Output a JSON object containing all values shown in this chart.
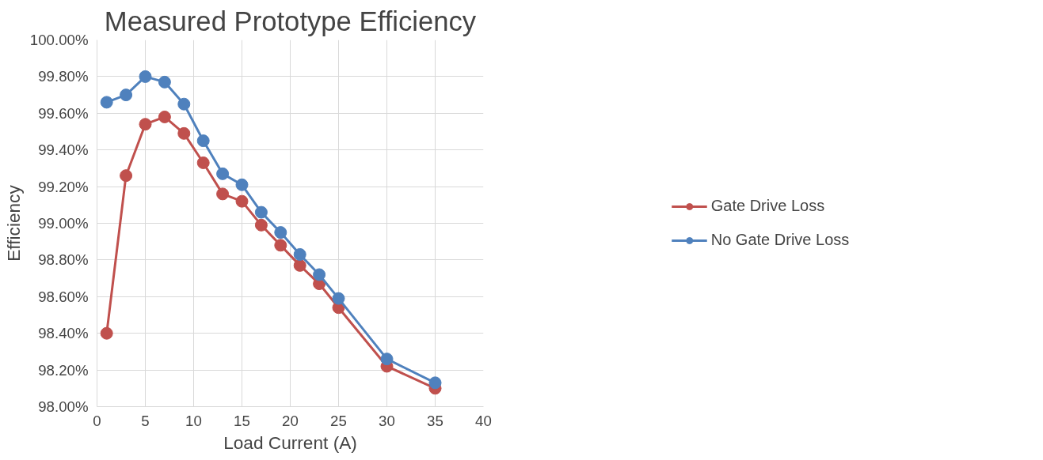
{
  "chart_data": {
    "type": "line",
    "title": "Measured Prototype Efficiency",
    "xlabel": "Load Current (A)",
    "ylabel": "Efficiency",
    "x": [
      1,
      3,
      5,
      7,
      9,
      11,
      13,
      15,
      17,
      19,
      21,
      23,
      25,
      30,
      35
    ],
    "series": [
      {
        "name": "Gate Drive Loss",
        "color": "#c0504d",
        "values": [
          98.4,
          99.26,
          99.54,
          99.58,
          99.49,
          99.33,
          99.16,
          99.12,
          98.99,
          98.88,
          98.77,
          98.67,
          98.54,
          98.22,
          98.1
        ]
      },
      {
        "name": "No Gate Drive Loss",
        "color": "#4f81bd",
        "values": [
          99.66,
          99.7,
          99.8,
          99.77,
          99.65,
          99.45,
          99.27,
          99.21,
          99.06,
          98.95,
          98.83,
          98.72,
          98.59,
          98.26,
          98.13
        ]
      }
    ],
    "xlim": [
      0,
      40
    ],
    "xticks": [
      0,
      5,
      10,
      15,
      20,
      25,
      30,
      35,
      40
    ],
    "ylim": [
      98,
      100
    ],
    "yticks": [
      {
        "value": 98,
        "label": "98.00%"
      },
      {
        "value": 98.2,
        "label": "98.20%"
      },
      {
        "value": 98.4,
        "label": "98.40%"
      },
      {
        "value": 98.6,
        "label": "98.60%"
      },
      {
        "value": 98.8,
        "label": "98.80%"
      },
      {
        "value": 99,
        "label": "99.00%"
      },
      {
        "value": 99.2,
        "label": "99.20%"
      },
      {
        "value": 99.4,
        "label": "99.40%"
      },
      {
        "value": 99.6,
        "label": "99.60%"
      },
      {
        "value": 99.8,
        "label": "99.80%"
      },
      {
        "value": 100,
        "label": "100.00%"
      }
    ],
    "grid": true,
    "legend": "right",
    "marker": "circle",
    "line_style": "solid"
  }
}
